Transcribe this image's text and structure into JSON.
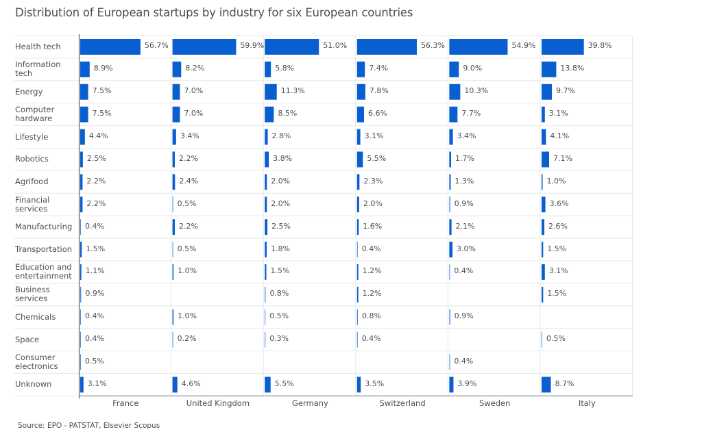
{
  "chart_data": {
    "type": "bar",
    "orientation": "horizontal",
    "layout": "small-multiples",
    "title": "Distribution of European startups by industry for six European countries",
    "source": "Source: EPO - PATSTAT, Elsevier Scopus",
    "xlabel": "",
    "ylabel": "",
    "unit": "%",
    "bar_color": "#0a5fd0",
    "grid": true,
    "categories": [
      [
        "Health tech"
      ],
      [
        "Information",
        "tech"
      ],
      [
        "Energy"
      ],
      [
        "Computer",
        "hardware"
      ],
      [
        "Lifestyle"
      ],
      [
        "Robotics"
      ],
      [
        "Agrifood"
      ],
      [
        "Financial",
        "services"
      ],
      [
        "Manufacturing"
      ],
      [
        "Transportation"
      ],
      [
        "Education and",
        "entertainment"
      ],
      [
        "Business",
        "services"
      ],
      [
        "Chemicals"
      ],
      [
        "Space"
      ],
      [
        "Consumer",
        "electronics"
      ],
      [
        "Unknown"
      ]
    ],
    "series": [
      {
        "name": "France",
        "values": [
          56.7,
          8.9,
          7.5,
          7.5,
          4.4,
          2.5,
          2.2,
          2.2,
          0.4,
          1.5,
          1.1,
          0.9,
          0.4,
          0.4,
          0.5,
          3.1
        ]
      },
      {
        "name": "United Kingdom",
        "values": [
          59.9,
          8.2,
          7.0,
          7.0,
          3.4,
          2.2,
          2.4,
          0.5,
          2.2,
          0.5,
          1.0,
          null,
          1.0,
          0.2,
          null,
          4.6
        ]
      },
      {
        "name": "Germany",
        "values": [
          51.0,
          5.8,
          11.3,
          8.5,
          2.8,
          3.8,
          2.0,
          2.0,
          2.5,
          1.8,
          1.5,
          0.8,
          0.5,
          0.3,
          null,
          5.5
        ]
      },
      {
        "name": "Switzerland",
        "values": [
          56.3,
          7.4,
          7.8,
          6.6,
          3.1,
          5.5,
          2.3,
          2.0,
          1.6,
          0.4,
          1.2,
          1.2,
          0.8,
          0.4,
          null,
          3.5
        ]
      },
      {
        "name": "Sweden",
        "values": [
          54.9,
          9.0,
          10.3,
          7.7,
          3.4,
          1.7,
          1.3,
          0.9,
          2.1,
          3.0,
          0.4,
          null,
          0.9,
          null,
          0.4,
          3.9
        ]
      },
      {
        "name": "Italy",
        "values": [
          39.8,
          13.8,
          9.7,
          3.1,
          4.1,
          7.1,
          1.0,
          3.6,
          2.6,
          1.5,
          3.1,
          1.5,
          null,
          0.5,
          null,
          8.7
        ]
      }
    ],
    "value_format": "{v}%",
    "xlim": [
      0,
      60
    ]
  }
}
